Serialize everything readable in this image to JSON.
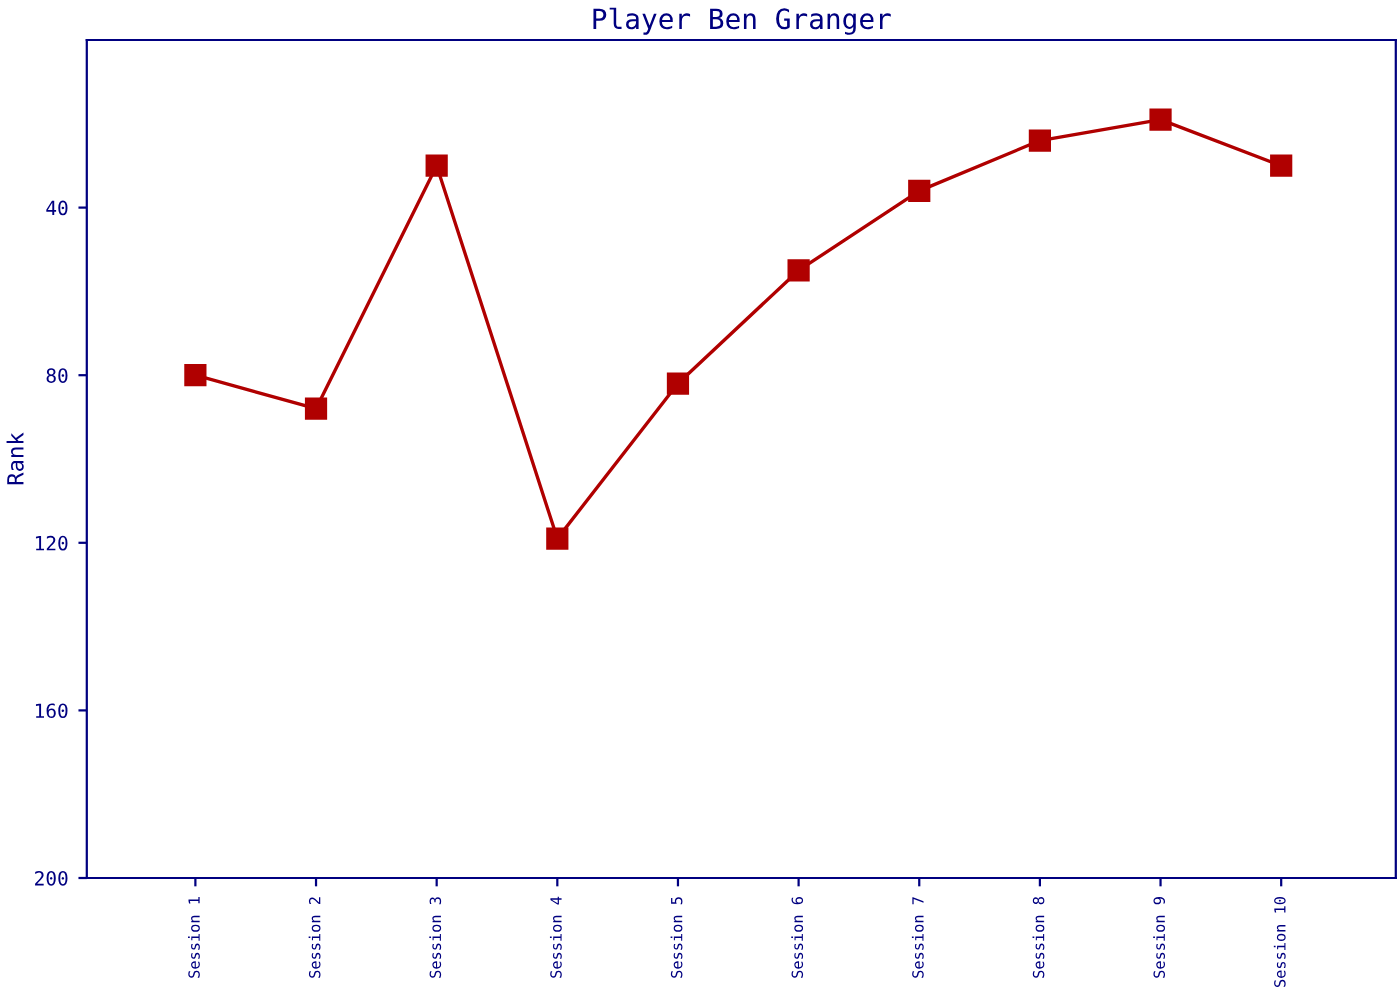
{
  "chart_data": {
    "type": "line",
    "title": "Player Ben Granger",
    "ylabel": "Rank",
    "categories": [
      "Session 1",
      "Session 2",
      "Session 3",
      "Session 4",
      "Session 5",
      "Session 6",
      "Session 7",
      "Session 8",
      "Session 9",
      "Session 10"
    ],
    "series": [
      {
        "color": "#b00000",
        "values": [
          80,
          88,
          30,
          119,
          82,
          55,
          36,
          24,
          19,
          30
        ]
      }
    ],
    "ylim": [
      200,
      0
    ],
    "yticks": [
      40,
      80,
      120,
      160,
      200
    ],
    "grid": false,
    "legend": false,
    "marker": "square",
    "line_style": "solid"
  }
}
